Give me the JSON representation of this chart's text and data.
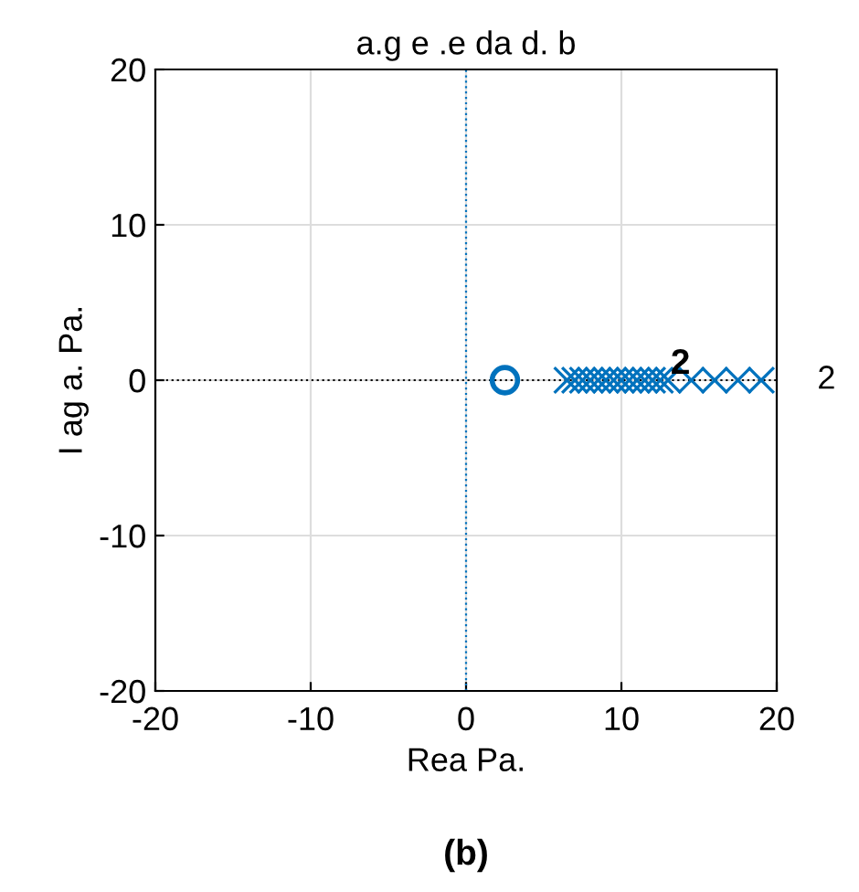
{
  "chart_data": {
    "type": "scatter",
    "title": "a.g e .e da d. b",
    "xlabel": "Rea Pa.",
    "ylabel": "I ag a. Pa.",
    "xlim": [
      -20,
      20
    ],
    "ylim": [
      -20,
      20
    ],
    "xticks": [
      -20,
      -10,
      0,
      10,
      20
    ],
    "yticks": [
      -20,
      -10,
      0,
      10,
      20
    ],
    "grid": true,
    "ref_lines": [
      {
        "axis": "x",
        "value": 0,
        "color": "#0072bd",
        "line_style": "dotted"
      },
      {
        "axis": "y",
        "value": 0,
        "color": "#000000",
        "line_style": "dotted"
      }
    ],
    "series": [
      {
        "color": "#0072bd",
        "marker": "circle",
        "x": [
          2.5
        ],
        "values": [
          0
        ]
      },
      {
        "color": "#0072bd",
        "marker": "cross",
        "x": [
          6.5,
          7,
          7.5,
          8,
          8.5,
          9,
          9.5,
          10,
          10.5,
          11,
          11.5,
          12,
          12.5,
          13,
          14.5,
          16,
          17.5,
          19
        ],
        "values": [
          0,
          0,
          0,
          0,
          0,
          0,
          0,
          0,
          0,
          0,
          0,
          0,
          0,
          0,
          0,
          0,
          0,
          0
        ]
      }
    ],
    "annotations": [
      {
        "text": "2",
        "x": 13.8,
        "y": 1
      },
      "2",
      "(b)"
    ]
  }
}
